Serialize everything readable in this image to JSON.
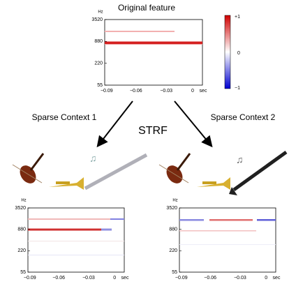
{
  "top_panel": {
    "title": "Original feature",
    "y_unit": "Hz",
    "yticks": [
      "3520",
      "880",
      "220",
      "55"
    ],
    "xticks": [
      "−0.09",
      "−0.06",
      "−0.03",
      "0"
    ],
    "x_unit": "sec"
  },
  "colorbar": {
    "ticks": [
      "+1",
      "0",
      "−1"
    ]
  },
  "arrows": {
    "left_label": "Sparse Context 1",
    "center_label": "STRF",
    "right_label": "Sparse Context 2"
  },
  "panels": [
    {
      "y_unit": "Hz",
      "yticks": [
        "3520",
        "880",
        "220",
        "55"
      ],
      "xticks": [
        "−0.09",
        "−0.06",
        "−0.03",
        "0"
      ],
      "x_unit": "sec"
    },
    {
      "y_unit": "Hz",
      "yticks": [
        "3520",
        "880",
        "220",
        "55"
      ],
      "xticks": [
        "−0.09",
        "−0.06",
        "−0.03",
        "0"
      ],
      "x_unit": "sec"
    }
  ]
}
